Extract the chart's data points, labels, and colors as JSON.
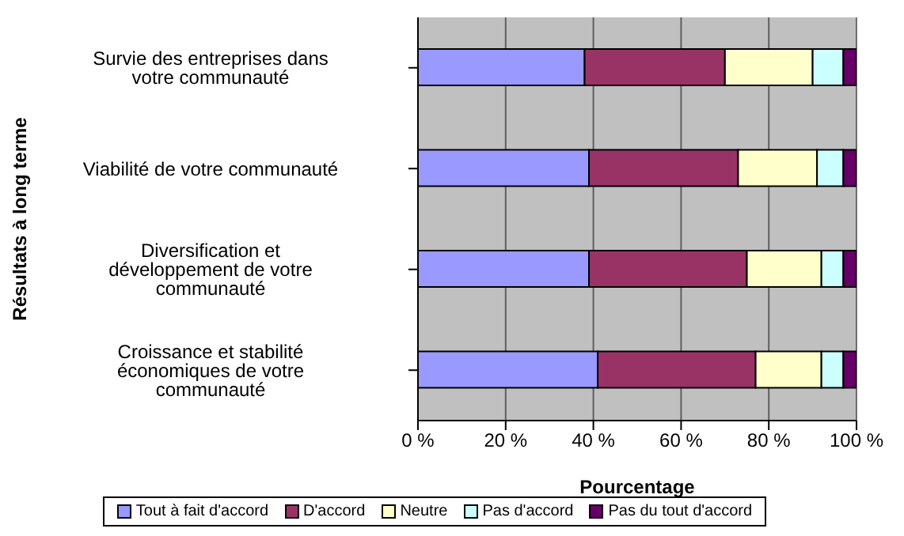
{
  "chart_data": {
    "type": "bar",
    "orientation": "horizontal",
    "stacked": true,
    "ylabel": "Résultats à long terme",
    "xlabel": "Pourcentage",
    "categories": [
      "Survie des entreprises dans votre communauté",
      "Viabilité de votre communauté",
      "Diversification et développement de votre communauté",
      "Croissance et stabilité économiques de votre communauté"
    ],
    "series": [
      {
        "name": "Tout à fait d'accord",
        "color": "#9999ff",
        "values": [
          38,
          39,
          39,
          41
        ]
      },
      {
        "name": "D'accord",
        "color": "#993366",
        "values": [
          32,
          34,
          36,
          36
        ]
      },
      {
        "name": "Neutre",
        "color": "#ffffcc",
        "values": [
          20,
          18,
          17,
          15
        ]
      },
      {
        "name": "Pas d'accord",
        "color": "#ccffff",
        "values": [
          7,
          6,
          5,
          5
        ]
      },
      {
        "name": "Pas du tout d'accord",
        "color": "#660066",
        "values": [
          3,
          3,
          3,
          3
        ]
      }
    ],
    "xlim": [
      0,
      100
    ],
    "xticks": [
      {
        "value": 0,
        "label": "0 %"
      },
      {
        "value": 20,
        "label": "20 %"
      },
      {
        "value": 40,
        "label": "40 %"
      },
      {
        "value": 60,
        "label": "60 %"
      },
      {
        "value": 80,
        "label": "80 %"
      },
      {
        "value": 100,
        "label": "100 %"
      }
    ],
    "grid": "x",
    "legend": "bottom"
  }
}
